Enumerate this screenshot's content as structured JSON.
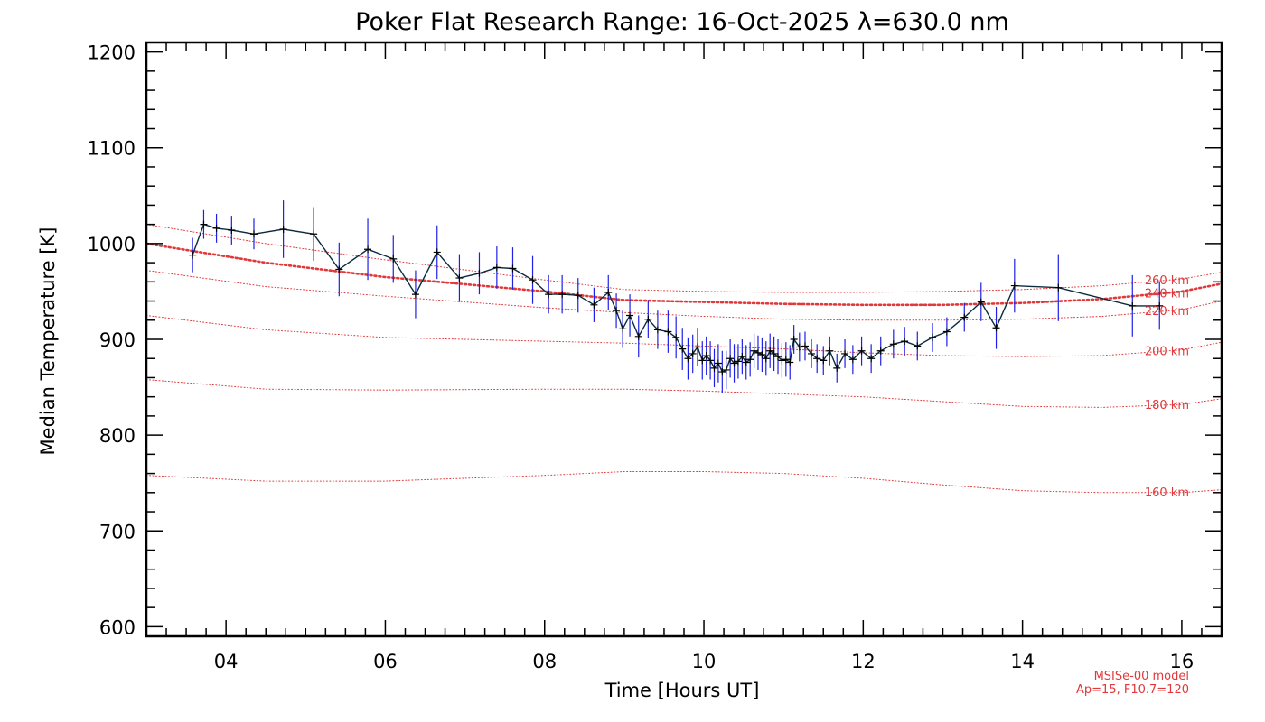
{
  "chart_data": {
    "type": "line",
    "title": "Poker Flat Research Range: 16-Oct-2025 λ=630.0 nm",
    "xlabel": "Time [Hours UT]",
    "ylabel": "Median Temperature [K]",
    "xlim": [
      3.0,
      16.5
    ],
    "ylim": [
      590,
      1210
    ],
    "x_ticks": [
      4,
      6,
      8,
      10,
      12,
      14,
      16
    ],
    "x_tick_labels": [
      "04",
      "06",
      "08",
      "10",
      "12",
      "14",
      "16"
    ],
    "y_ticks": [
      600,
      700,
      800,
      900,
      1000,
      1100,
      1200
    ],
    "y_tick_labels": [
      "600",
      "700",
      "800",
      "900",
      "1000",
      "1100",
      "1200"
    ],
    "colors": {
      "measurement": "#0a2b3f",
      "error_bar": "#1f1fe6",
      "model": "#e0393b"
    },
    "measurements": {
      "name": "Median temperature",
      "x": [
        3.58,
        3.72,
        3.88,
        4.07,
        4.35,
        4.72,
        5.1,
        5.42,
        5.78,
        6.1,
        6.38,
        6.65,
        6.93,
        7.18,
        7.4,
        7.6,
        7.85,
        8.05,
        8.22,
        8.42,
        8.62,
        8.8,
        8.9,
        8.98,
        9.07,
        9.18,
        9.3,
        9.42,
        9.55,
        9.65,
        9.73,
        9.8,
        9.86,
        9.92,
        9.98,
        10.03,
        10.08,
        10.13,
        10.18,
        10.23,
        10.28,
        10.33,
        10.38,
        10.43,
        10.48,
        10.53,
        10.58,
        10.63,
        10.68,
        10.73,
        10.78,
        10.83,
        10.88,
        10.93,
        10.98,
        11.03,
        11.08,
        11.13,
        11.2,
        11.27,
        11.35,
        11.42,
        11.5,
        11.58,
        11.67,
        11.77,
        11.87,
        11.98,
        12.1,
        12.22,
        12.38,
        12.52,
        12.68,
        12.87,
        13.05,
        13.27,
        13.48,
        13.67,
        13.9,
        14.45,
        15.38,
        15.72
      ],
      "y": [
        988,
        1020,
        1016,
        1014,
        1010,
        1015,
        1010,
        973,
        994,
        984,
        947,
        991,
        964,
        969,
        975,
        974,
        962,
        947,
        947,
        946,
        936,
        949,
        930,
        911,
        925,
        903,
        921,
        910,
        908,
        902,
        890,
        880,
        885,
        892,
        878,
        883,
        878,
        870,
        875,
        866,
        868,
        880,
        875,
        877,
        882,
        876,
        879,
        888,
        886,
        884,
        880,
        888,
        885,
        882,
        878,
        879,
        876,
        900,
        892,
        893,
        885,
        880,
        878,
        888,
        870,
        885,
        879,
        888,
        880,
        888,
        895,
        898,
        893,
        902,
        908,
        923,
        939,
        912,
        956,
        954,
        935,
        935
      ],
      "err": [
        18,
        15,
        15,
        15,
        16,
        30,
        28,
        28,
        32,
        25,
        25,
        28,
        25,
        22,
        22,
        22,
        25,
        20,
        20,
        18,
        18,
        18,
        18,
        20,
        22,
        22,
        20,
        20,
        22,
        22,
        22,
        22,
        20,
        20,
        20,
        20,
        20,
        20,
        20,
        22,
        20,
        20,
        20,
        18,
        18,
        18,
        18,
        18,
        18,
        18,
        18,
        18,
        18,
        18,
        18,
        18,
        18,
        15,
        15,
        15,
        15,
        15,
        15,
        15,
        15,
        15,
        15,
        15,
        15,
        15,
        15,
        15,
        15,
        15,
        15,
        15,
        20,
        22,
        28,
        35,
        32,
        25
      ]
    },
    "model_name": "MSISe-00 model",
    "model_params": "Ap=15, F10.7=120",
    "model_series": [
      {
        "name": "160 km",
        "x": [
          3.0,
          4.5,
          6.0,
          8.0,
          9.0,
          10.0,
          11.0,
          12.0,
          13.0,
          14.0,
          15.0,
          16.0,
          16.5
        ],
        "y": [
          758,
          752,
          752,
          758,
          762,
          762,
          760,
          755,
          748,
          742,
          740,
          740,
          743
        ]
      },
      {
        "name": "180 km",
        "x": [
          3.0,
          4.5,
          6.0,
          8.0,
          9.0,
          10.0,
          11.0,
          12.0,
          13.0,
          14.0,
          15.0,
          16.0,
          16.5
        ],
        "y": [
          858,
          848,
          847,
          848,
          848,
          846,
          843,
          840,
          835,
          830,
          829,
          832,
          838
        ]
      },
      {
        "name": "200 km",
        "x": [
          3.0,
          4.5,
          6.0,
          8.0,
          9.0,
          10.0,
          11.0,
          12.0,
          13.0,
          14.0,
          15.0,
          16.0,
          16.5
        ],
        "y": [
          925,
          910,
          902,
          898,
          896,
          893,
          890,
          886,
          883,
          882,
          883,
          889,
          897
        ]
      },
      {
        "name": "220 km",
        "x": [
          3.0,
          4.5,
          6.0,
          8.0,
          9.0,
          10.0,
          11.0,
          12.0,
          13.0,
          14.0,
          15.0,
          16.0,
          16.5
        ],
        "y": [
          972,
          955,
          945,
          933,
          928,
          924,
          921,
          920,
          920,
          921,
          924,
          931,
          940
        ]
      },
      {
        "name": "240 km",
        "x": [
          3.0,
          4.5,
          6.0,
          8.0,
          9.0,
          10.0,
          11.0,
          12.0,
          13.0,
          14.0,
          15.0,
          16.0,
          16.5
        ],
        "y": [
          1000,
          980,
          965,
          950,
          941,
          939,
          937,
          936,
          936,
          938,
          942,
          950,
          958
        ]
      },
      {
        "name": "260 km",
        "x": [
          3.0,
          4.5,
          6.0,
          8.0,
          9.0,
          10.0,
          11.0,
          12.0,
          13.0,
          14.0,
          15.0,
          16.0,
          16.5
        ],
        "y": [
          1020,
          1000,
          983,
          962,
          952,
          950,
          949,
          949,
          950,
          952,
          956,
          963,
          970
        ]
      }
    ],
    "highlighted_model": "240 km"
  }
}
